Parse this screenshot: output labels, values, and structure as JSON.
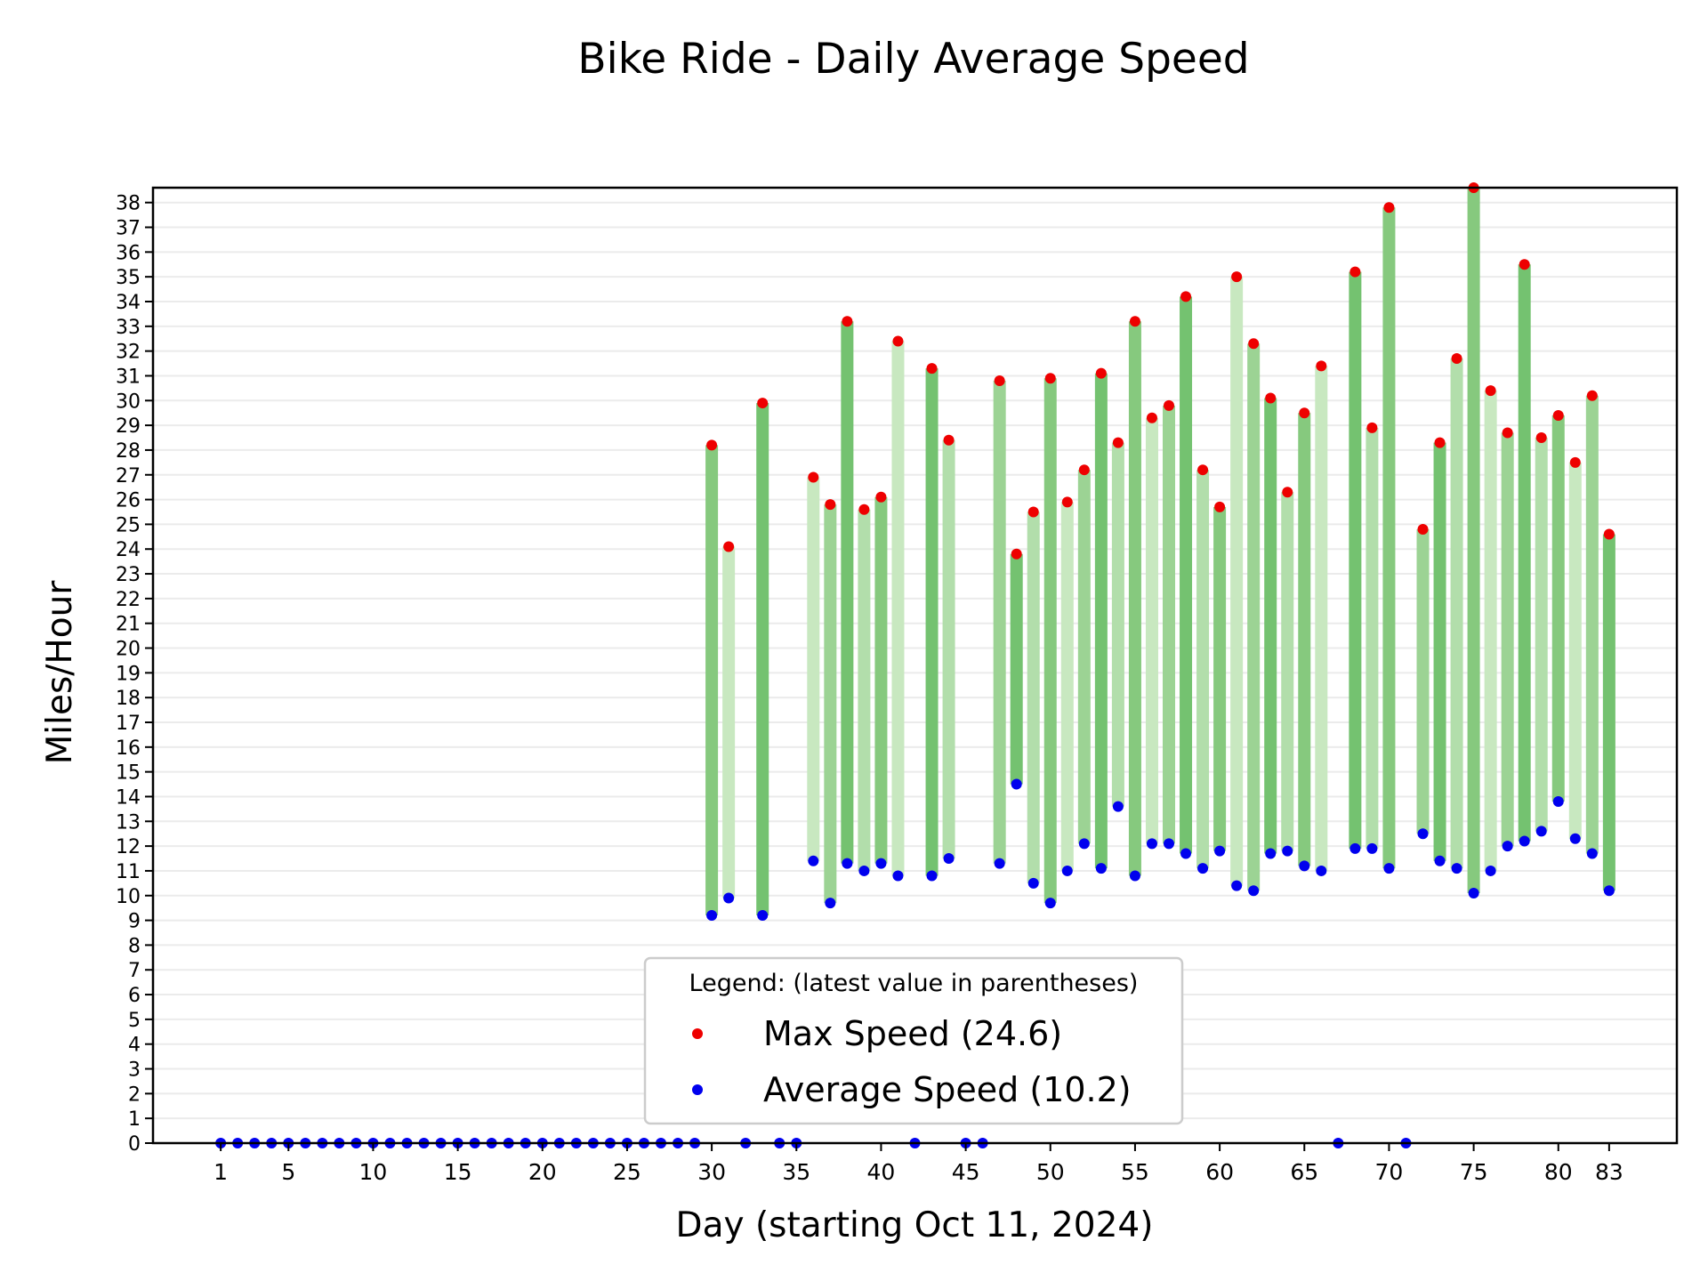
{
  "chart_data": {
    "type": "bar",
    "title": "Bike Ride - Daily Average Speed",
    "xlabel": "Day (starting Oct 11, 2024)",
    "ylabel": "Miles/Hour",
    "xlim": [
      -3,
      87
    ],
    "ylim": [
      0,
      38.6
    ],
    "x_ticks": [
      1,
      5,
      10,
      15,
      20,
      25,
      30,
      35,
      40,
      45,
      50,
      55,
      60,
      65,
      70,
      75,
      80,
      83
    ],
    "y_ticks": [
      0,
      1,
      2,
      3,
      4,
      5,
      6,
      7,
      8,
      9,
      10,
      11,
      12,
      13,
      14,
      15,
      16,
      17,
      18,
      19,
      20,
      21,
      22,
      23,
      24,
      25,
      26,
      27,
      28,
      29,
      30,
      31,
      32,
      33,
      34,
      35,
      36,
      37,
      38
    ],
    "grid": "horizontal",
    "legend": {
      "title": "Legend: (latest value in parentheses)",
      "placement": "bottom-center",
      "entries": [
        {
          "label": "Max Speed (24.6)",
          "color": "#ee0000"
        },
        {
          "label": "Average Speed (10.2)",
          "color": "#0000ee"
        }
      ]
    },
    "colors": {
      "max_marker": "#ee0000",
      "avg_marker": "#0000ee",
      "range_bar_shades": [
        "#c8e8c0",
        "#b2deab",
        "#9cd394",
        "#86c97e",
        "#74c270"
      ]
    },
    "series": [
      {
        "name": "Max Speed",
        "points": [
          [
            30,
            28.2
          ],
          [
            31,
            24.1
          ],
          [
            33,
            29.9
          ],
          [
            36,
            26.9
          ],
          [
            37,
            25.8
          ],
          [
            38,
            33.2
          ],
          [
            39,
            25.6
          ],
          [
            40,
            26.1
          ],
          [
            41,
            32.4
          ],
          [
            43,
            31.3
          ],
          [
            44,
            28.4
          ],
          [
            47,
            30.8
          ],
          [
            48,
            23.8
          ],
          [
            49,
            25.5
          ],
          [
            50,
            30.9
          ],
          [
            51,
            25.9
          ],
          [
            52,
            27.2
          ],
          [
            53,
            31.1
          ],
          [
            54,
            28.3
          ],
          [
            55,
            33.2
          ],
          [
            56,
            29.3
          ],
          [
            57,
            29.8
          ],
          [
            58,
            34.2
          ],
          [
            59,
            27.2
          ],
          [
            60,
            25.7
          ],
          [
            61,
            35.0
          ],
          [
            62,
            32.3
          ],
          [
            63,
            30.1
          ],
          [
            64,
            26.3
          ],
          [
            65,
            29.5
          ],
          [
            66,
            31.4
          ],
          [
            68,
            35.2
          ],
          [
            69,
            28.9
          ],
          [
            70,
            37.8
          ],
          [
            72,
            24.8
          ],
          [
            73,
            28.3
          ],
          [
            74,
            31.7
          ],
          [
            75,
            38.6
          ],
          [
            76,
            30.4
          ],
          [
            77,
            28.7
          ],
          [
            78,
            35.5
          ],
          [
            79,
            28.5
          ],
          [
            80,
            29.4
          ],
          [
            81,
            27.5
          ],
          [
            82,
            30.2
          ],
          [
            83,
            24.6
          ]
        ]
      },
      {
        "name": "Average Speed",
        "points": [
          [
            1,
            0
          ],
          [
            2,
            0
          ],
          [
            3,
            0
          ],
          [
            4,
            0
          ],
          [
            5,
            0
          ],
          [
            6,
            0
          ],
          [
            7,
            0
          ],
          [
            8,
            0
          ],
          [
            9,
            0
          ],
          [
            10,
            0
          ],
          [
            11,
            0
          ],
          [
            12,
            0
          ],
          [
            13,
            0
          ],
          [
            14,
            0
          ],
          [
            15,
            0
          ],
          [
            16,
            0
          ],
          [
            17,
            0
          ],
          [
            18,
            0
          ],
          [
            19,
            0
          ],
          [
            20,
            0
          ],
          [
            21,
            0
          ],
          [
            22,
            0
          ],
          [
            23,
            0
          ],
          [
            24,
            0
          ],
          [
            25,
            0
          ],
          [
            26,
            0
          ],
          [
            27,
            0
          ],
          [
            28,
            0
          ],
          [
            29,
            0
          ],
          [
            30,
            9.2
          ],
          [
            31,
            9.9
          ],
          [
            32,
            0
          ],
          [
            33,
            9.2
          ],
          [
            34,
            0
          ],
          [
            35,
            0
          ],
          [
            36,
            11.4
          ],
          [
            37,
            9.7
          ],
          [
            38,
            11.3
          ],
          [
            39,
            11.0
          ],
          [
            40,
            11.3
          ],
          [
            41,
            10.8
          ],
          [
            42,
            0
          ],
          [
            43,
            10.8
          ],
          [
            44,
            11.5
          ],
          [
            45,
            0
          ],
          [
            46,
            0
          ],
          [
            47,
            11.3
          ],
          [
            48,
            14.5
          ],
          [
            49,
            10.5
          ],
          [
            50,
            9.7
          ],
          [
            51,
            11.0
          ],
          [
            52,
            12.1
          ],
          [
            53,
            11.1
          ],
          [
            54,
            13.6
          ],
          [
            55,
            10.8
          ],
          [
            56,
            12.1
          ],
          [
            57,
            12.1
          ],
          [
            58,
            11.7
          ],
          [
            59,
            11.1
          ],
          [
            60,
            11.8
          ],
          [
            61,
            10.4
          ],
          [
            62,
            10.2
          ],
          [
            63,
            11.7
          ],
          [
            64,
            11.8
          ],
          [
            65,
            11.2
          ],
          [
            66,
            11.0
          ],
          [
            67,
            0
          ],
          [
            68,
            11.9
          ],
          [
            69,
            11.9
          ],
          [
            70,
            11.1
          ],
          [
            71,
            0
          ],
          [
            72,
            12.5
          ],
          [
            73,
            11.4
          ],
          [
            74,
            11.1
          ],
          [
            75,
            10.1
          ],
          [
            76,
            11.0
          ],
          [
            77,
            12.0
          ],
          [
            78,
            12.2
          ],
          [
            79,
            12.6
          ],
          [
            80,
            13.8
          ],
          [
            81,
            12.3
          ],
          [
            82,
            11.7
          ],
          [
            83,
            10.2
          ]
        ]
      }
    ]
  }
}
